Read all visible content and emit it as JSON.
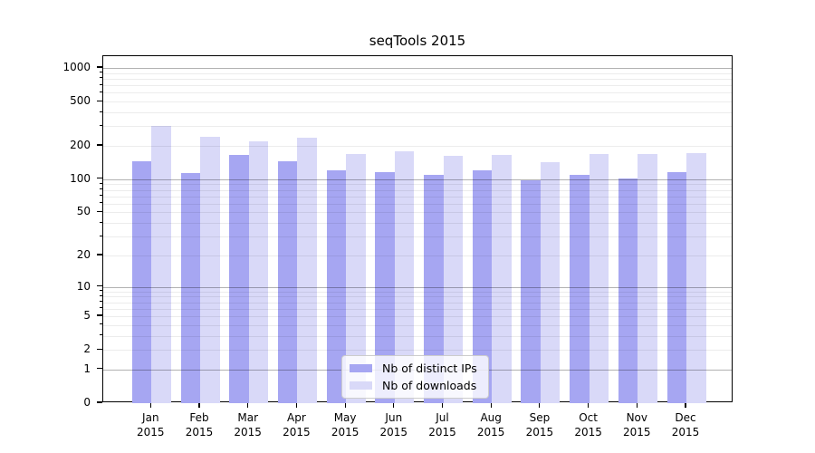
{
  "title": "seqTools 2015",
  "colors": {
    "ips_bar": "#a6a6f2",
    "downloads_bar": "#d9d9f8",
    "axis": "#000000",
    "grid_major": "rgba(0,0,0,0.30)",
    "grid_minor": "rgba(0,0,0,0.075)",
    "legend_border": "#cccccc",
    "legend_bg": "rgba(255,255,255,0.8)"
  },
  "chart_data": {
    "type": "bar",
    "title": "seqTools 2015",
    "categories": [
      "Jan 2015",
      "Feb 2015",
      "Mar 2015",
      "Apr 2015",
      "May 2015",
      "Jun 2015",
      "Jul 2015",
      "Aug 2015",
      "Sep 2015",
      "Oct 2015",
      "Nov 2015",
      "Dec 2015"
    ],
    "series": [
      {
        "name": "Nb of distinct IPs",
        "color_key": "ips_bar",
        "values": [
          145,
          114,
          165,
          146,
          121,
          115,
          110,
          121,
          97,
          110,
          102,
          115
        ]
      },
      {
        "name": "Nb of downloads",
        "color_key": "downloads_bar",
        "values": [
          300,
          240,
          220,
          237,
          170,
          180,
          163,
          166,
          142,
          169,
          170,
          172
        ]
      }
    ],
    "xlabel": "",
    "ylabel": "",
    "yscale": "log1p",
    "yticks": [
      0,
      1,
      2,
      5,
      10,
      20,
      50,
      100,
      200,
      500,
      1000
    ],
    "ytick_major_grid": [
      1,
      10,
      100,
      1000
    ],
    "ylim": [
      0,
      1276
    ],
    "grid": true,
    "legend_position": "lower center"
  },
  "legend": {
    "items": [
      {
        "label": "Nb of distinct IPs",
        "color_key": "ips_bar"
      },
      {
        "label": "Nb of downloads",
        "color_key": "downloads_bar"
      }
    ]
  }
}
